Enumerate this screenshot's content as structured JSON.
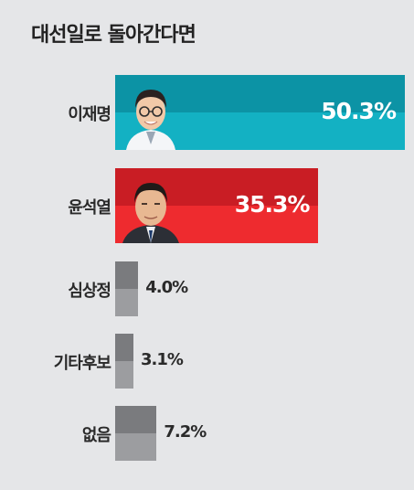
{
  "title": "대선일로 돌아간다면",
  "colors": {
    "lee_top": "#0c93a5",
    "lee_bottom": "#13b1c3",
    "yoon_top": "#c91d24",
    "yoon_bottom": "#ee2b2f",
    "gray_top": "#7a7b7e",
    "gray_bottom": "#9c9da0"
  },
  "chart_data": {
    "type": "bar",
    "orientation": "horizontal",
    "title": "대선일로 돌아간다면",
    "xlabel": "",
    "ylabel": "",
    "categories": [
      "이재명",
      "윤석열",
      "심상정",
      "기타후보",
      "없음"
    ],
    "values": [
      50.3,
      35.3,
      4.0,
      3.1,
      7.2
    ],
    "value_labels": [
      "50.3%",
      "35.3%",
      "4.0%",
      "3.1%",
      "7.2%"
    ],
    "unit": "%",
    "grid": false,
    "legend": "none"
  }
}
